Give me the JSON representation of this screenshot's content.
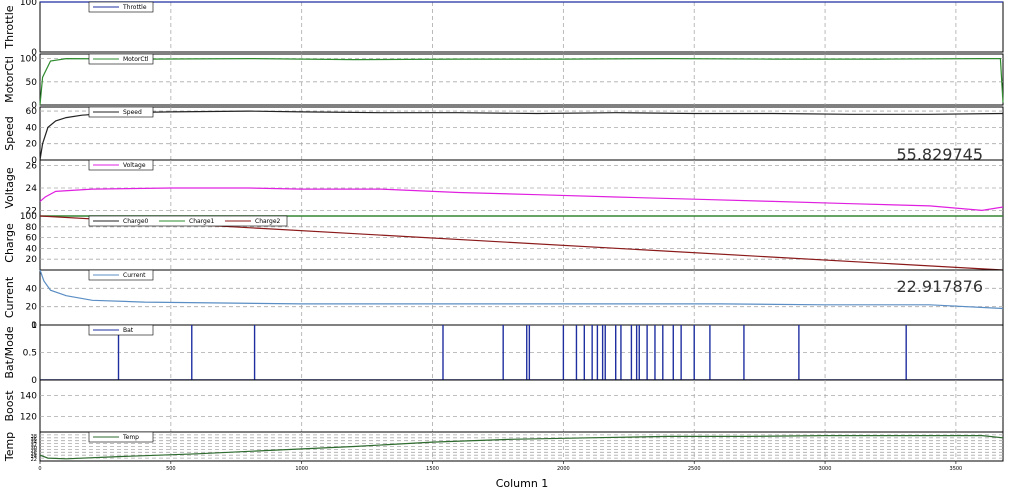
{
  "window": {
    "x_axis_label": "Column 1"
  },
  "chart_data": {
    "type": "line",
    "x": {
      "label": "Column 1",
      "range": [
        0,
        3680
      ],
      "ticks": [
        0,
        500,
        1000,
        1500,
        2000,
        2500,
        3000,
        3500
      ],
      "tick_labels": [
        "0",
        "500",
        "1000",
        "1500",
        "2000",
        "2500",
        "3000",
        "3500"
      ]
    },
    "grid": true,
    "panels": [
      {
        "id": "throttle",
        "ylabel": "Throttle",
        "ylim": [
          0,
          100
        ],
        "yticks": [
          0,
          100
        ],
        "ytick_labels": [
          "0",
          "100"
        ],
        "legend": [
          "Throttle"
        ],
        "series": [
          {
            "name": "Throttle",
            "color": "#1f2fa0",
            "points": [
              [
                0,
                100
              ],
              [
                3680,
                100
              ]
            ]
          }
        ]
      },
      {
        "id": "motorctl",
        "ylabel": "MotorCtl",
        "ylim": [
          0,
          110
        ],
        "yticks": [
          0,
          50,
          100
        ],
        "ytick_labels": [
          "0",
          "50",
          "100"
        ],
        "legend": [
          "MotorCtl"
        ],
        "series": [
          {
            "name": "MotorCtl",
            "color": "#2e8b2e",
            "points": [
              [
                0,
                0
              ],
              [
                10,
                60
              ],
              [
                40,
                95
              ],
              [
                100,
                100
              ],
              [
                400,
                99
              ],
              [
                800,
                100
              ],
              [
                1200,
                98
              ],
              [
                1600,
                99
              ],
              [
                2000,
                99
              ],
              [
                2400,
                100
              ],
              [
                2800,
                99
              ],
              [
                3200,
                99
              ],
              [
                3600,
                100
              ],
              [
                3670,
                100
              ],
              [
                3680,
                5
              ]
            ]
          }
        ]
      },
      {
        "id": "speed",
        "ylabel": "Speed",
        "ylim": [
          0,
          65
        ],
        "yticks": [
          0,
          20,
          40,
          60
        ],
        "ytick_labels": [
          "0",
          "20",
          "40",
          "60"
        ],
        "legend": [
          "Speed"
        ],
        "readout": "55.829745",
        "series": [
          {
            "name": "Speed",
            "color": "#222222",
            "points": [
              [
                0,
                0
              ],
              [
                10,
                20
              ],
              [
                30,
                40
              ],
              [
                60,
                48
              ],
              [
                100,
                52
              ],
              [
                160,
                55
              ],
              [
                300,
                58
              ],
              [
                500,
                59
              ],
              [
                800,
                60
              ],
              [
                1000,
                59
              ],
              [
                1300,
                58
              ],
              [
                1600,
                58
              ],
              [
                1900,
                57
              ],
              [
                2200,
                58
              ],
              [
                2500,
                57
              ],
              [
                2800,
                57
              ],
              [
                3100,
                56
              ],
              [
                3400,
                56
              ],
              [
                3680,
                57
              ]
            ]
          }
        ]
      },
      {
        "id": "voltage",
        "ylabel": "Voltage",
        "ylim": [
          21.5,
          26.5
        ],
        "yticks": [
          22,
          24,
          26
        ],
        "ytick_labels": [
          "22",
          "24",
          "26"
        ],
        "legend": [
          "Voltage"
        ],
        "series": [
          {
            "name": "Voltage",
            "color": "#e020e0",
            "points": [
              [
                0,
                22.8
              ],
              [
                20,
                23.2
              ],
              [
                60,
                23.7
              ],
              [
                200,
                23.9
              ],
              [
                500,
                24.0
              ],
              [
                800,
                24.0
              ],
              [
                1000,
                23.9
              ],
              [
                1300,
                23.9
              ],
              [
                1600,
                23.6
              ],
              [
                1900,
                23.4
              ],
              [
                2200,
                23.2
              ],
              [
                2500,
                23.0
              ],
              [
                2800,
                22.8
              ],
              [
                3100,
                22.6
              ],
              [
                3400,
                22.4
              ],
              [
                3600,
                22.0
              ],
              [
                3680,
                22.3
              ]
            ]
          }
        ]
      },
      {
        "id": "charge",
        "ylabel": "Charge",
        "ylim": [
          0,
          100
        ],
        "yticks": [
          20,
          40,
          60,
          80,
          100
        ],
        "ytick_labels": [
          "20",
          "40",
          "60",
          "80",
          "100"
        ],
        "legend": [
          "Charge0",
          "Charge1",
          "Charge2"
        ],
        "series": [
          {
            "name": "Charge0",
            "color": "#222222",
            "points": [
              [
                0,
                100
              ],
              [
                3680,
                100
              ]
            ]
          },
          {
            "name": "Charge1",
            "color": "#2e8b2e",
            "points": [
              [
                0,
                100
              ],
              [
                3680,
                100
              ]
            ]
          },
          {
            "name": "Charge2",
            "color": "#8b1a1a",
            "points": [
              [
                0,
                100
              ],
              [
                3680,
                0
              ]
            ]
          }
        ]
      },
      {
        "id": "current",
        "ylabel": "Current",
        "ylim": [
          0,
          60
        ],
        "yticks": [
          0,
          20,
          40
        ],
        "ytick_labels": [
          "0",
          "20",
          "40"
        ],
        "legend": [
          "Current"
        ],
        "readout": "22.917876",
        "series": [
          {
            "name": "Current",
            "color": "#5b8ec4",
            "points": [
              [
                0,
                60
              ],
              [
                15,
                48
              ],
              [
                40,
                38
              ],
              [
                100,
                32
              ],
              [
                200,
                27
              ],
              [
                400,
                25
              ],
              [
                700,
                24
              ],
              [
                1000,
                23
              ],
              [
                1400,
                23
              ],
              [
                1800,
                23
              ],
              [
                2200,
                23
              ],
              [
                2600,
                23
              ],
              [
                3000,
                22
              ],
              [
                3400,
                22
              ],
              [
                3680,
                18
              ]
            ]
          }
        ]
      },
      {
        "id": "batmode",
        "ylabel": "Bat/Mode",
        "ylim": [
          0,
          1
        ],
        "yticks": [
          0,
          0.5,
          1
        ],
        "ytick_labels": [
          "0",
          "0.5",
          "1"
        ],
        "legend": [
          "Bat"
        ],
        "series": [
          {
            "name": "Bat",
            "color": "#1f2fa0",
            "type": "spikes",
            "x": [
              300,
              580,
              820,
              1540,
              1770,
              1860,
              2050,
              2220,
              2290,
              2350,
              1870,
              2000,
              2080,
              2110,
              2130,
              2150,
              2160,
              2200,
              2260,
              2280,
              2320,
              2380,
              2420,
              2450,
              2500,
              2560,
              2690,
              2900,
              3310
            ]
          }
        ]
      },
      {
        "id": "boost",
        "ylabel": "Boost",
        "ylim": [
          105,
          155
        ],
        "yticks": [
          120,
          140
        ],
        "ytick_labels": [
          "120",
          "140"
        ],
        "legend": [],
        "series": []
      },
      {
        "id": "temp",
        "ylabel": "Temp",
        "ylim": [
          20,
          40
        ],
        "yticks": [
          22,
          24,
          26,
          28,
          30,
          32,
          34,
          36,
          38
        ],
        "ytick_labels": [
          "22",
          "24",
          "26",
          "28",
          "30",
          "32",
          "34",
          "36",
          "38"
        ],
        "legend": [
          "Temp"
        ],
        "series": [
          {
            "name": "Temp",
            "color": "#2e6b2e",
            "points": [
              [
                0,
                24
              ],
              [
                30,
                22
              ],
              [
                100,
                21.5
              ],
              [
                300,
                23
              ],
              [
                600,
                25
              ],
              [
                900,
                27.5
              ],
              [
                1200,
                30
              ],
              [
                1500,
                33
              ],
              [
                1800,
                35
              ],
              [
                2100,
                36
              ],
              [
                2400,
                37
              ],
              [
                2700,
                37
              ],
              [
                3000,
                37.5
              ],
              [
                3300,
                37.5
              ],
              [
                3600,
                37.5
              ],
              [
                3680,
                36
              ]
            ]
          }
        ]
      }
    ]
  }
}
